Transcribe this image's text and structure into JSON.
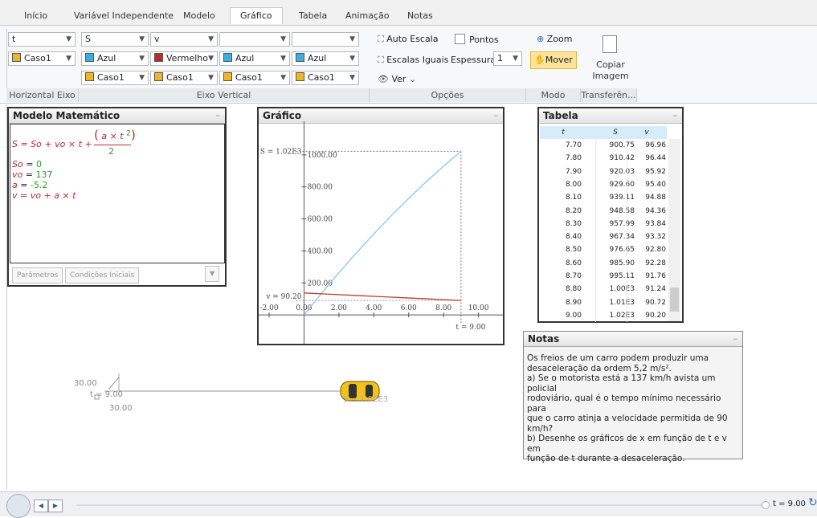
{
  "tabs": [
    "Início",
    "Variável Independente",
    "Modelo",
    "Gráfico",
    "Tabela",
    "Animação",
    "Notas"
  ],
  "ribbon": {
    "horizontal": {
      "variable": "t",
      "case": "Caso1",
      "label": "Horizontal Eixo"
    },
    "vertical": {
      "variables": [
        "S",
        "v"
      ],
      "colors": [
        "Azul",
        "Vermelho",
        "Azul",
        "Azul"
      ],
      "cases": [
        "Caso1",
        "Caso1",
        "Caso1",
        "Caso1"
      ],
      "label": "Eixo Vertical"
    },
    "options": {
      "auto_scale": "Auto Escala",
      "points": "Pontos",
      "equal_scales": "Escalas Iguais",
      "thickness_label": "Espessura:",
      "thickness": "1",
      "view": "Ver",
      "label": "Opções"
    },
    "mode": {
      "zoom": "Zoom",
      "move": "Mover",
      "label": "Modo"
    },
    "transfer": {
      "copy": "Copiar Imagem",
      "label": "Transferên..."
    }
  },
  "model": {
    "title": "Modelo Matemático",
    "eq_lhs": "S",
    "eq_rhs": "= So + vo × t +",
    "eq_num": "a × t",
    "eq_exp": "2",
    "eq_den": "2",
    "params": [
      {
        "name": "So",
        "value": "0"
      },
      {
        "name": "vo",
        "value": "137"
      },
      {
        "name": "a",
        "value": "-5.2"
      }
    ],
    "eq2_lhs": "v",
    "eq2_rhs": "= vo + a × t",
    "buttons": [
      "Parâmetros",
      "Condições Iniciais"
    ]
  },
  "graph": {
    "title": "Gráfico",
    "xlim": [
      -2.6,
      11.4
    ],
    "ylim": [
      -180,
      1210
    ],
    "xticks": [
      {
        "value": -2,
        "label": "-2.00"
      },
      {
        "value": 0,
        "label": "0.00"
      },
      {
        "value": 2,
        "label": "2.00"
      },
      {
        "value": 4,
        "label": "4.00"
      },
      {
        "value": 6,
        "label": "6.00"
      },
      {
        "value": 8,
        "label": "8.00"
      },
      {
        "value": 10,
        "label": "10.00"
      }
    ],
    "yticks": [
      {
        "value": 200,
        "label": "200.00"
      },
      {
        "value": 400,
        "label": "400.00"
      },
      {
        "value": 600,
        "label": "600.00"
      },
      {
        "value": 800,
        "label": "800.00"
      },
      {
        "value": 1000,
        "label": "1000.00"
      }
    ],
    "x": [
      0,
      1,
      2,
      3,
      4,
      5,
      6,
      7,
      8,
      9
    ],
    "series": [
      {
        "name": "S",
        "color": "#87c8f0",
        "values": [
          0,
          134.4,
          263.6,
          387.6,
          506.4,
          620,
          728.4,
          831.6,
          929.6,
          1022.4
        ]
      },
      {
        "name": "v",
        "color": "#c0392b",
        "values": [
          137,
          131.8,
          126.6,
          121.4,
          116.2,
          111,
          105.8,
          100.6,
          95.4,
          90.2
        ]
      }
    ],
    "s_label": "S = 1.02E3",
    "v_label": "v = 90.20",
    "t_label": "t = 9.00"
  },
  "table": {
    "title": "Tabela",
    "columns": [
      "t",
      "S",
      "v"
    ],
    "rows": [
      [
        "7.70",
        "900.75",
        "96.96"
      ],
      [
        "7.80",
        "910.42",
        "96.44"
      ],
      [
        "7.90",
        "920.03",
        "95.92"
      ],
      [
        "8.00",
        "929.60",
        "95.40"
      ],
      [
        "8.10",
        "939.11",
        "94.88"
      ],
      [
        "8.20",
        "948.58",
        "94.36"
      ],
      [
        "8.30",
        "957.99",
        "93.84"
      ],
      [
        "8.40",
        "967.34",
        "93.32"
      ],
      [
        "8.50",
        "976.65",
        "92.80"
      ],
      [
        "8.60",
        "985.90",
        "92.28"
      ],
      [
        "8.70",
        "995.11",
        "91.76"
      ],
      [
        "8.80",
        "1.00E3",
        "91.24"
      ],
      [
        "8.90",
        "1.01E3",
        "90.72"
      ],
      [
        "9.00",
        "1.02E3",
        "90.20"
      ]
    ]
  },
  "notes": {
    "title": "Notas",
    "lines": [
      "Os freios de um carro podem produzir uma",
      "desaceleração da ordem 5,2 m/s².",
      "a) Se o motorista está a 137 km/h avista um policial",
      "rodoviário, qual é o tempo mínimo necessário para",
      "que o carro atinja a velocidade permitida de 90",
      "km/h?",
      "b) Desenhe os gráficos de x em função de t e v em",
      "função de t durante a desaceleração."
    ]
  },
  "animation": {
    "scale_y": "30.00",
    "time": "t = 9.00",
    "scale_x": "30.00",
    "car_label": "S = 1.02E3"
  },
  "player": {
    "time": "t = 9.00"
  }
}
